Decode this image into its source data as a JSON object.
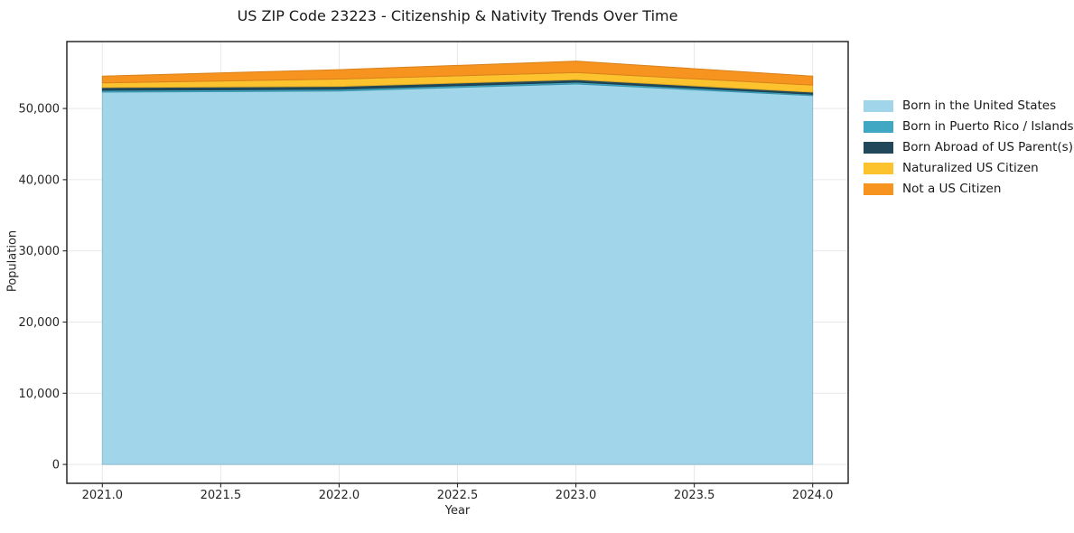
{
  "title": "US ZIP Code 23223 - Citizenship & Nativity Trends Over Time",
  "chart_data": {
    "type": "area",
    "stacked": true,
    "title": "US ZIP Code 23223 - Citizenship & Nativity Trends Over Time",
    "xlabel": "Year",
    "ylabel": "Population",
    "x": [
      2021,
      2022,
      2023,
      2024
    ],
    "series": [
      {
        "name": "Born in the United States",
        "color": "#A0D5EA",
        "values": [
          52300,
          52450,
          53450,
          51800
        ]
      },
      {
        "name": "Born in Puerto Rico / Islands",
        "color": "#41A8C4",
        "values": [
          250,
          250,
          250,
          200
        ]
      },
      {
        "name": "Born Abroad of US Parent(s)",
        "color": "#20485A",
        "values": [
          400,
          400,
          350,
          300
        ]
      },
      {
        "name": "Naturalized US Citizen",
        "color": "#FDC32F",
        "values": [
          650,
          1030,
          1000,
          980
        ]
      },
      {
        "name": "Not a US Citizen",
        "color": "#F7941F",
        "values": [
          950,
          1320,
          1600,
          1260
        ]
      }
    ],
    "x_ticks": [
      2021.0,
      2021.5,
      2022.0,
      2022.5,
      2023.0,
      2023.5,
      2024.0
    ],
    "x_tick_labels": [
      "2021.0",
      "2021.5",
      "2022.0",
      "2022.5",
      "2023.0",
      "2023.5",
      "2024.0"
    ],
    "y_ticks": [
      0,
      10000,
      20000,
      30000,
      40000,
      50000
    ],
    "y_tick_labels": [
      "0",
      "10,000",
      "20,000",
      "30,000",
      "40,000",
      "50,000"
    ],
    "xlim": [
      2020.85,
      2024.15
    ],
    "ylim": [
      -2650,
      59400
    ],
    "grid": true,
    "grid_color": "#e7e7e7",
    "spine_color": "#1a1a1a",
    "tick_color": "#262626",
    "legend_position": "right-outside"
  }
}
